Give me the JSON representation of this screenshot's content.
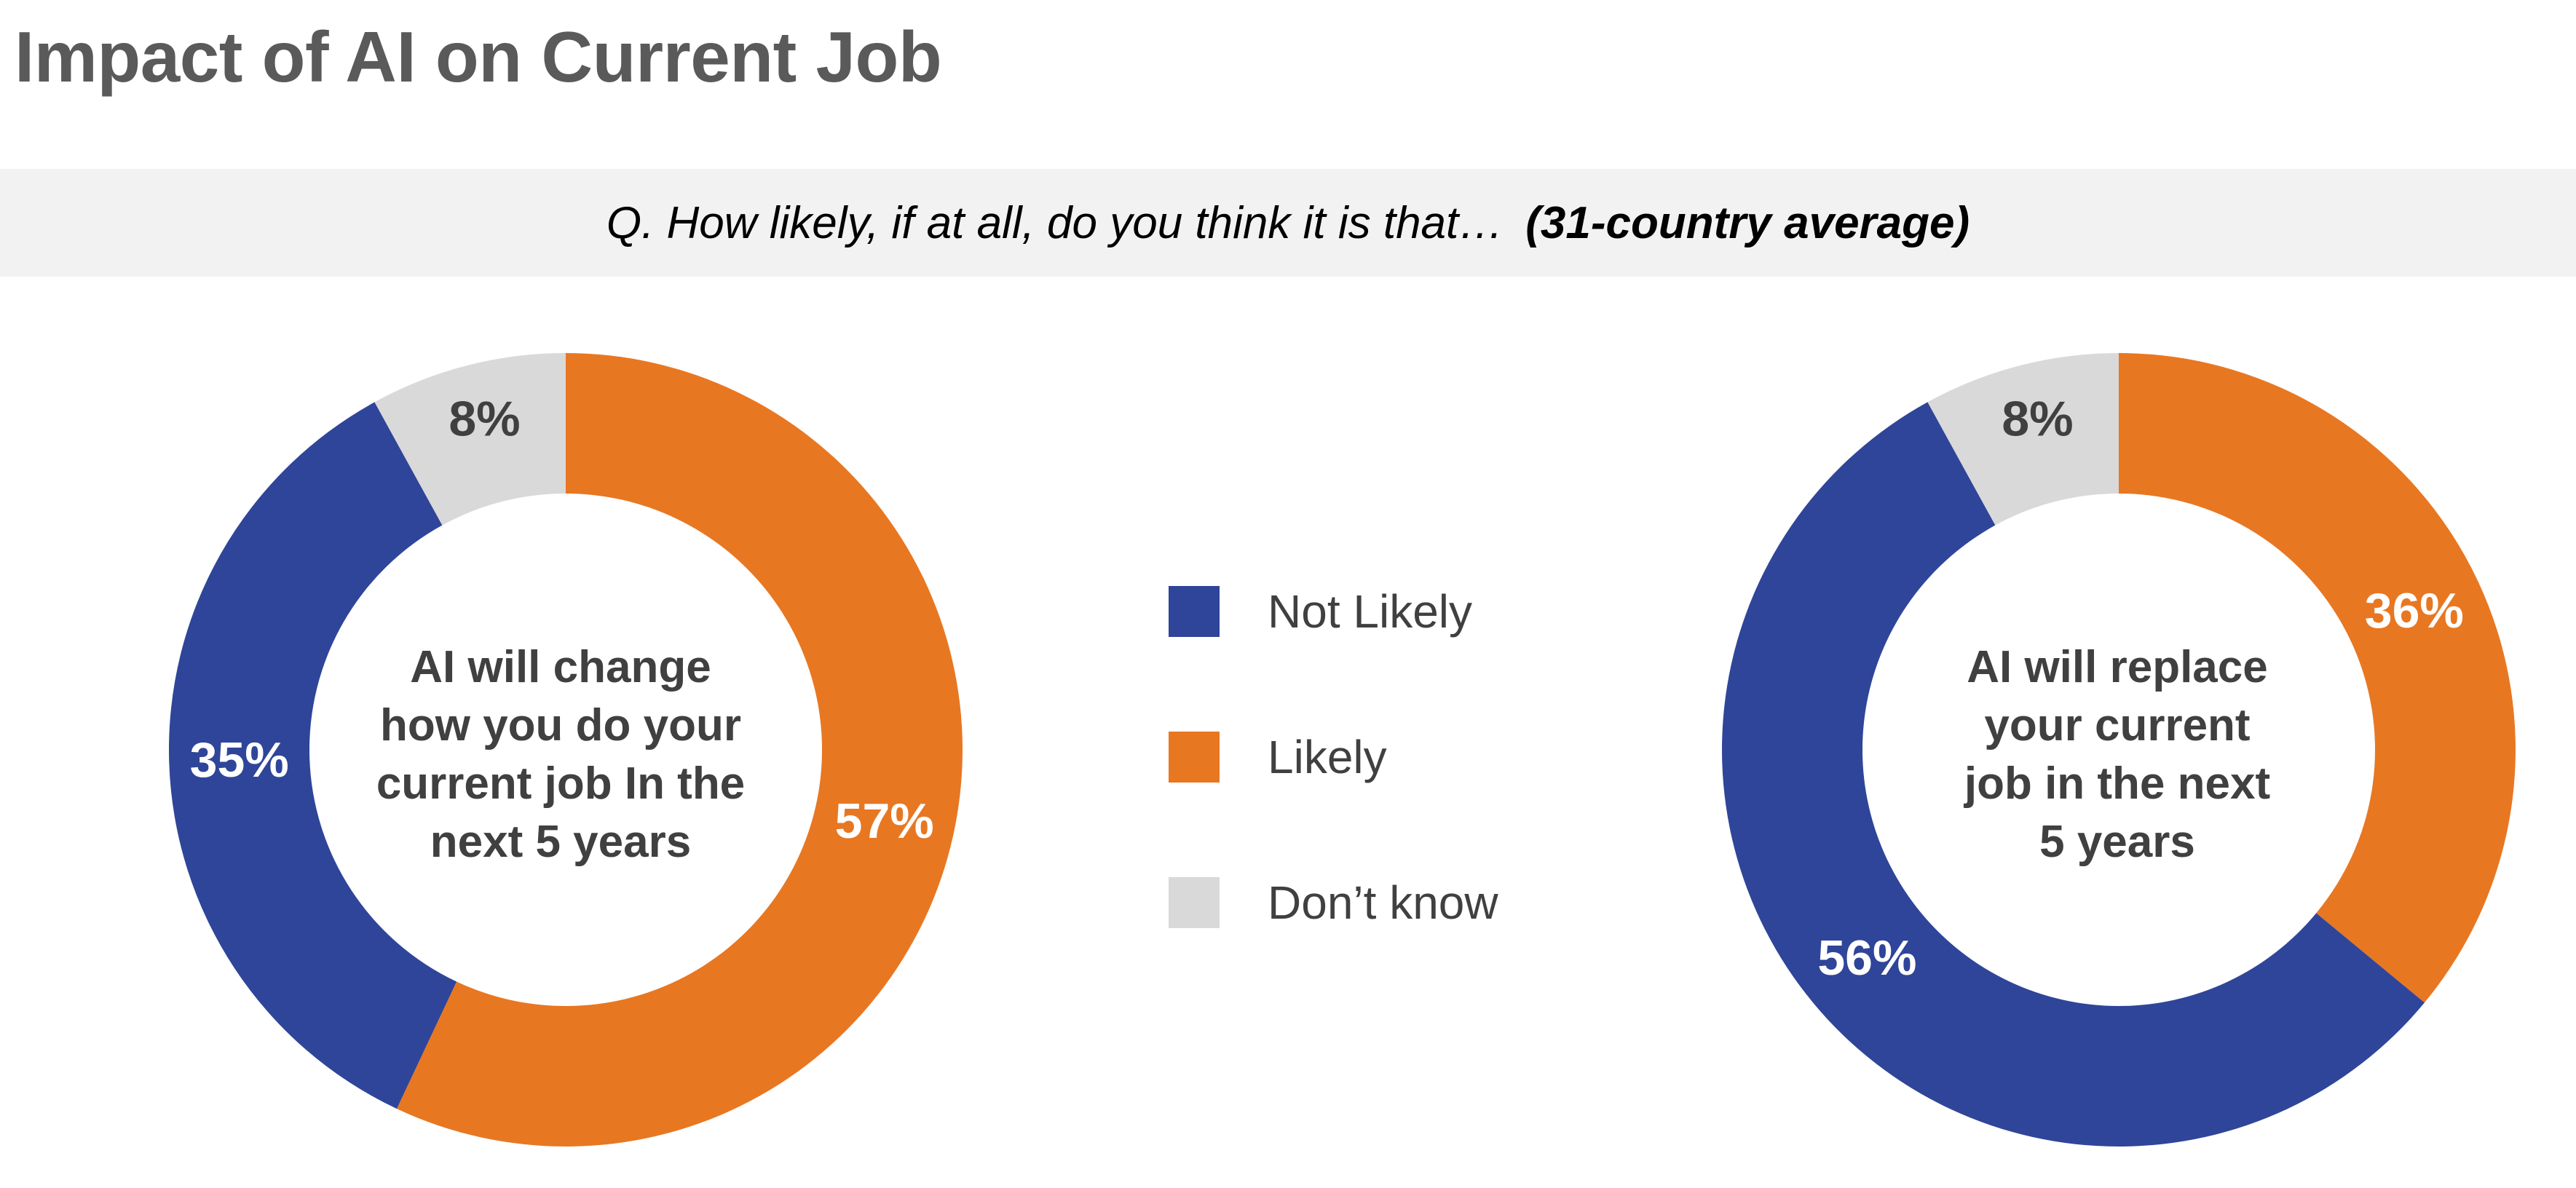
{
  "title": "Impact of AI on Current Job",
  "question": {
    "text": "Q. How likely, if at all, do you think it is that…",
    "emphasis": "(31-country average)"
  },
  "colors": {
    "not_likely": "#2f4599",
    "likely": "#e87722",
    "dont_know": "#d9d9d9",
    "label_light": "#ffffff",
    "label_dark": "#404040"
  },
  "legend": [
    {
      "key": "not_likely",
      "label": "Not Likely"
    },
    {
      "key": "likely",
      "label": "Likely"
    },
    {
      "key": "dont_know",
      "label": "Don’t know"
    }
  ],
  "chart_data": [
    {
      "type": "pie",
      "variant": "donut",
      "center_label": [
        "AI will change",
        "how you do your",
        "current job In the",
        "next 5 years"
      ],
      "slices": [
        {
          "key": "likely",
          "name": "Likely",
          "value": 57,
          "label": "57%"
        },
        {
          "key": "not_likely",
          "name": "Not Likely",
          "value": 35,
          "label": "35%"
        },
        {
          "key": "dont_know",
          "name": "Don’t know",
          "value": 8,
          "label": "8%"
        }
      ]
    },
    {
      "type": "pie",
      "variant": "donut",
      "center_label": [
        "AI will replace",
        "your current",
        "job in the next",
        "5 years"
      ],
      "slices": [
        {
          "key": "likely",
          "name": "Likely",
          "value": 36,
          "label": "36%"
        },
        {
          "key": "not_likely",
          "name": "Not Likely",
          "value": 56,
          "label": "56%"
        },
        {
          "key": "dont_know",
          "name": "Don’t know",
          "value": 8,
          "label": "8%"
        }
      ]
    }
  ]
}
